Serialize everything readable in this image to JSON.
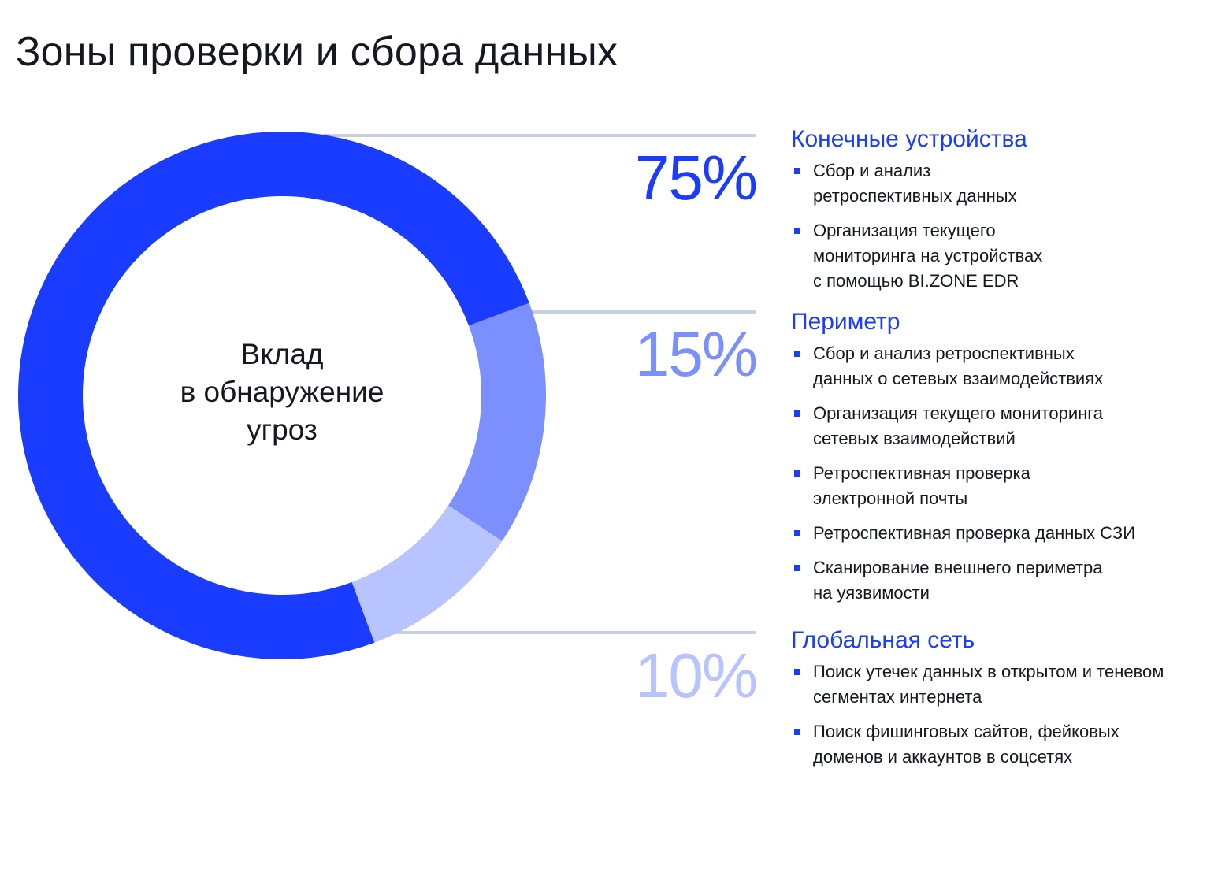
{
  "title": "Зоны проверки и сбора данных",
  "chart_data": {
    "type": "pie",
    "variant": "donut",
    "center_label": "Вклад\nв обнаружение\nугроз",
    "slices": [
      {
        "name": "Периметр",
        "value": 15,
        "label": "15%",
        "color": "#7b8fff"
      },
      {
        "name": "Глобальная сеть",
        "value": 10,
        "label": "10%",
        "color": "#b8c4ff"
      },
      {
        "name": "Конечные устройства",
        "value": 75,
        "label": "75%",
        "color": "#1a3cff"
      }
    ]
  },
  "colors": {
    "accent": "#1a3cff",
    "divider": "#c9cfdc",
    "bullet": "#1a3cff"
  },
  "groups": [
    {
      "heading": "Конечные устройства",
      "items": [
        "Сбор и анализ\nретроспективных данных",
        "Организация текущего\nмониторинга на устройствах\nс помощью BI.ZONE EDR"
      ]
    },
    {
      "heading": "Периметр",
      "items": [
        "Сбор и анализ ретроспективных\nданных о сетевых взаимодействиях",
        "Организация текущего мониторинга\nсетевых взаимодействий",
        "Ретроспективная проверка\nэлектронной почты",
        "Ретроспективная проверка данных СЗИ",
        "Сканирование внешнего периметра\nна уязвимости"
      ]
    },
    {
      "heading": "Глобальная сеть",
      "items": [
        "Поиск утечек данных в открытом и теневом\nсегментах интернета",
        "Поиск фишинговых сайтов, фейковых\nдоменов и аккаунтов в соцсетях"
      ]
    }
  ]
}
